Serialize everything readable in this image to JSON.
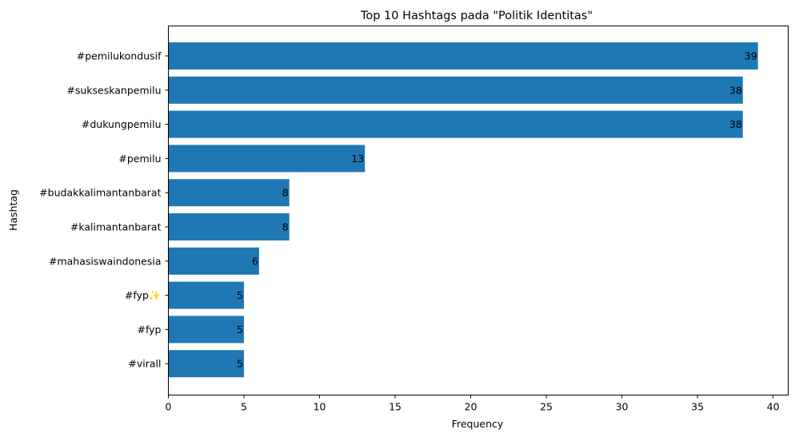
{
  "chart_data": {
    "type": "bar",
    "orientation": "horizontal",
    "title": "Top 10 Hashtags pada \"Politik Identitas\"",
    "xlabel": "Frequency",
    "ylabel": "Hashtag",
    "xlim": [
      0,
      41
    ],
    "xticks": [
      0,
      5,
      10,
      15,
      20,
      25,
      30,
      35,
      40
    ],
    "categories": [
      "#pemilukondusif",
      "#sukseskanpemilu",
      "#dukungpemilu",
      "#pemilu",
      "#budakkalimantanbarat",
      "#kalimantanbarat",
      "#mahasiswaindonesia",
      "#fyp✨",
      "#fyp",
      "#virall"
    ],
    "values": [
      39,
      38,
      38,
      13,
      8,
      8,
      6,
      5,
      5,
      5
    ],
    "bar_color": "#1f77b4",
    "grid": false,
    "legend": false
  }
}
